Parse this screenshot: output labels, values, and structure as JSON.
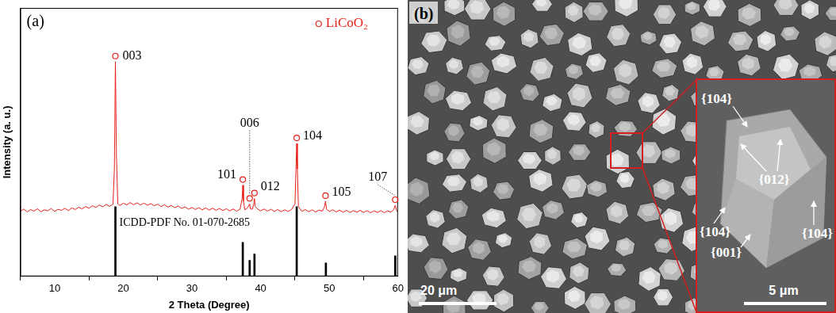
{
  "chart_data": {
    "type": "line",
    "title": "(a)",
    "x_label": "2 Theta (Degree)",
    "y_label": "Intensity (a. u.)",
    "xlim": [
      5,
      60
    ],
    "xticks": [
      10,
      20,
      30,
      40,
      50,
      60
    ],
    "ylim": [
      0,
      100
    ],
    "tick_labels": "x",
    "grid": false,
    "legend": "top-right",
    "series": [
      {
        "name": "LiCoO₂",
        "type": "line",
        "color": "#e8201a",
        "marker": "open_circle",
        "x": [
          5,
          5.5,
          6,
          6.5,
          7,
          7.5,
          8,
          8.5,
          9,
          9.5,
          10,
          10.5,
          11,
          11.5,
          12,
          12.5,
          13,
          13.5,
          14,
          14.5,
          15,
          15.5,
          16,
          16.5,
          17,
          17.5,
          18,
          18.5,
          18.7,
          18.85,
          19,
          19.2,
          19.5,
          20,
          20.5,
          21,
          21.5,
          22,
          22.5,
          23,
          23.5,
          24,
          24.5,
          25,
          25.5,
          26,
          26.5,
          27,
          27.5,
          28,
          28.5,
          29,
          29.5,
          30,
          30.5,
          31,
          31.5,
          32,
          32.5,
          33,
          33.5,
          34,
          34.5,
          35,
          35.5,
          36,
          36.5,
          37,
          37.3,
          37.4,
          37.5,
          37.7,
          38,
          38.3,
          38.4,
          38.5,
          38.8,
          39,
          39.1,
          39.2,
          39.5,
          40,
          40.5,
          41,
          41.5,
          42,
          42.5,
          43,
          43.5,
          44,
          44.5,
          45,
          45.25,
          45.35,
          45.5,
          46,
          46.5,
          47,
          47.5,
          48,
          48.5,
          49,
          49.3,
          49.45,
          49.6,
          50,
          50.5,
          51,
          51.5,
          52,
          52.5,
          53,
          53.5,
          54,
          54.5,
          55,
          55.5,
          56,
          56.5,
          57,
          57.5,
          58,
          58.5,
          59,
          59.4,
          59.6,
          59.8,
          60
        ],
        "values": [
          24.2,
          25.1,
          24.0,
          24.9,
          24.3,
          25.2,
          24.1,
          24.8,
          24.4,
          25.3,
          24.2,
          25.0,
          24.6,
          25.4,
          24.5,
          25.5,
          24.9,
          25.8,
          25.1,
          26.0,
          25.4,
          26.3,
          25.7,
          26.6,
          25.9,
          26.8,
          26.1,
          26.9,
          40,
          80,
          45,
          27.0,
          26.4,
          27.3,
          26.6,
          27.5,
          26.7,
          27.4,
          26.6,
          27.3,
          26.5,
          27.1,
          26.3,
          26.9,
          26.0,
          26.7,
          25.8,
          26.4,
          25.6,
          26.2,
          25.3,
          25.9,
          25.0,
          25.7,
          24.9,
          25.6,
          24.8,
          25.5,
          24.7,
          25.4,
          24.6,
          25.3,
          24.5,
          25.2,
          24.4,
          25.1,
          24.3,
          25.0,
          29,
          34,
          28,
          24.8,
          25.3,
          26.5,
          27,
          25.2,
          25.0,
          27,
          29,
          26,
          25.2,
          24.4,
          25.1,
          24.3,
          25.0,
          24.2,
          24.9,
          24.1,
          24.8,
          24.2,
          24.9,
          27,
          49.5,
          40,
          26,
          24.2,
          24.9,
          24.1,
          24.8,
          24.0,
          24.7,
          24.3,
          26,
          28,
          25,
          24.2,
          24.8,
          24.0,
          24.7,
          23.9,
          24.6,
          23.8,
          24.5,
          23.9,
          24.6,
          23.8,
          24.5,
          23.7,
          24.4,
          23.8,
          24.5,
          23.7,
          24.4,
          23.9,
          25,
          26.5,
          24.5,
          24.0
        ]
      },
      {
        "name": "ICDD-PDF No. 01-070-2685",
        "type": "bar",
        "color": "#000000",
        "x": [
          18.85,
          37.4,
          38.4,
          39.1,
          45.25,
          49.5,
          59.6
        ],
        "values": [
          26,
          12.7,
          6,
          8.3,
          26,
          5,
          7.7
        ]
      }
    ],
    "annotations": [
      {
        "text": "003",
        "x": 18.85,
        "y": 80
      },
      {
        "text": "101",
        "x": 37.4,
        "y": 34
      },
      {
        "text": "006",
        "x": 38.4,
        "y": 27
      },
      {
        "text": "012",
        "x": 39.1,
        "y": 29
      },
      {
        "text": "104",
        "x": 45.25,
        "y": 49.5
      },
      {
        "text": "105",
        "x": 49.45,
        "y": 28
      },
      {
        "text": "107",
        "x": 59.6,
        "y": 26.5
      }
    ]
  },
  "image_panel": {
    "label": "(b)",
    "scale_bar": "20 μm",
    "inset": {
      "scale_bar": "5 μm",
      "facet_labels": [
        "{104}",
        "{012}",
        "{104}",
        "{001}",
        "{104}"
      ]
    }
  }
}
